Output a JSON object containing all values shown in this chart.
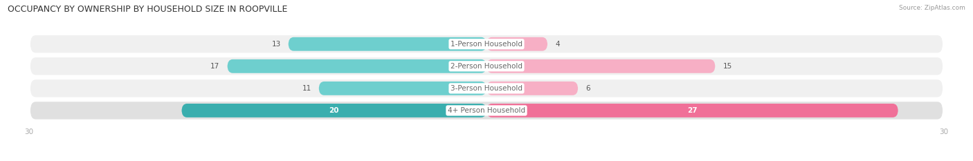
{
  "title": "OCCUPANCY BY OWNERSHIP BY HOUSEHOLD SIZE IN ROOPVILLE",
  "source": "Source: ZipAtlas.com",
  "categories": [
    "1-Person Household",
    "2-Person Household",
    "3-Person Household",
    "4+ Person Household"
  ],
  "owner_values": [
    13,
    17,
    11,
    20
  ],
  "renter_values": [
    4,
    15,
    6,
    27
  ],
  "owner_color_light": "#6ecfce",
  "owner_color_dark": "#3aaeae",
  "renter_color_light": "#f7afc5",
  "renter_color_dark": "#f07098",
  "row_bg_light": "#f0f0f0",
  "row_bg_dark": "#e0e0e0",
  "x_max": 30,
  "label_fontsize": 7.5,
  "title_fontsize": 9,
  "axis_tick_fontsize": 7.5,
  "legend_fontsize": 7.5,
  "value_fontsize": 7.5,
  "center_label_color": "#666666",
  "tick_color": "#aaaaaa"
}
